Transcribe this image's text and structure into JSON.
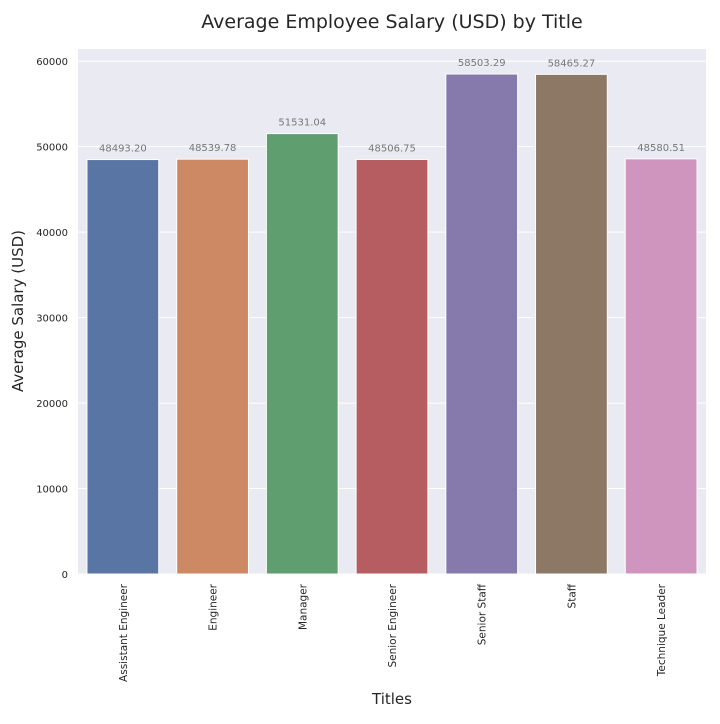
{
  "chart_data": {
    "type": "bar",
    "title": "Average Employee Salary (USD) by Title",
    "xlabel": "Titles",
    "ylabel": "Average Salary (USD)",
    "categories": [
      "Assistant Engineer",
      "Engineer",
      "Manager",
      "Senior Engineer",
      "Senior Staff",
      "Staff",
      "Technique Leader"
    ],
    "values": [
      48493.2,
      48539.78,
      51531.04,
      48506.75,
      58503.29,
      58465.27,
      48580.51
    ],
    "value_labels": [
      "48493.20",
      "48539.78",
      "51531.04",
      "48506.75",
      "58503.29",
      "58465.27",
      "48580.51"
    ],
    "colors": [
      "#5975a4",
      "#cc8963",
      "#5f9e6e",
      "#b55d60",
      "#857aab",
      "#8d7866",
      "#d095bf"
    ],
    "yticks": [
      0,
      10000,
      20000,
      30000,
      40000,
      50000,
      60000
    ],
    "ytick_labels": [
      "0",
      "10000",
      "20000",
      "30000",
      "40000",
      "50000",
      "60000"
    ],
    "ylim": [
      0,
      61430
    ],
    "grid": true,
    "background": "#eaeaf2",
    "grid_color": "#ffffff",
    "label_color": "#777777"
  }
}
